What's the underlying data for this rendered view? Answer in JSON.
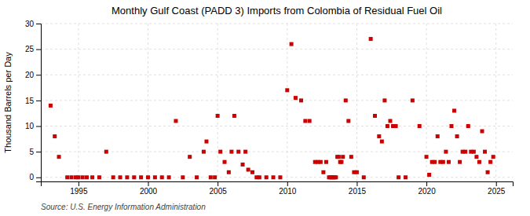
{
  "chart_data": {
    "type": "scatter",
    "title": "Monthly Gulf Coast (PADD 3) Imports from Colombia of Residual Fuel Oil",
    "ylabel": "Thousand Barrels per Day",
    "source": "Source: U.S. Energy Information Administration",
    "color": "#cc0000",
    "marker": "square",
    "grid": true,
    "xlim": [
      1992.3,
      2026.2
    ],
    "ylim": [
      -0.8,
      30
    ],
    "xticks": [
      1995,
      2000,
      2005,
      2010,
      2015,
      2020,
      2025
    ],
    "yticks": [
      0,
      5,
      10,
      15,
      20,
      25,
      30
    ],
    "x": [
      1993.0,
      1993.3,
      1993.6,
      1994.2,
      1994.5,
      1994.8,
      1995.0,
      1995.3,
      1995.6,
      1996.0,
      1996.5,
      1997.0,
      1997.5,
      1998.0,
      1998.5,
      1999.0,
      1999.5,
      2000.0,
      2000.5,
      2001.0,
      2001.5,
      2002.0,
      2002.5,
      2003.0,
      2003.5,
      2004.0,
      2004.2,
      2004.5,
      2004.8,
      2005.0,
      2005.2,
      2005.5,
      2005.8,
      2006.0,
      2006.2,
      2006.5,
      2006.8,
      2007.0,
      2007.2,
      2007.5,
      2007.8,
      2008.0,
      2008.5,
      2009.0,
      2009.5,
      2010.0,
      2010.3,
      2010.6,
      2011.0,
      2011.3,
      2011.6,
      2012.0,
      2012.2,
      2012.4,
      2012.6,
      2012.8,
      2013.0,
      2013.1,
      2013.2,
      2013.3,
      2013.4,
      2013.5,
      2013.6,
      2013.7,
      2013.8,
      2013.9,
      2014.0,
      2014.2,
      2014.4,
      2014.6,
      2014.8,
      2015.0,
      2015.5,
      2016.0,
      2016.3,
      2016.6,
      2016.8,
      2017.0,
      2017.2,
      2017.4,
      2017.6,
      2017.8,
      2018.0,
      2018.5,
      2019.0,
      2019.5,
      2020.0,
      2020.2,
      2020.4,
      2020.6,
      2020.8,
      2021.0,
      2021.2,
      2021.4,
      2021.6,
      2021.8,
      2022.0,
      2022.2,
      2022.4,
      2022.6,
      2022.8,
      2023.0,
      2023.2,
      2023.4,
      2023.6,
      2023.8,
      2024.0,
      2024.2,
      2024.4,
      2024.6,
      2024.8
    ],
    "values": [
      14.0,
      8.0,
      4.0,
      0.0,
      0.0,
      0.0,
      0.0,
      0.0,
      0.0,
      0.0,
      0.0,
      5.0,
      0.0,
      0.0,
      0.0,
      0.0,
      0.0,
      0.0,
      0.0,
      0.0,
      0.0,
      11.0,
      0.0,
      4.0,
      0.0,
      5.0,
      7.0,
      0.0,
      0.0,
      12.0,
      5.0,
      3.0,
      1.0,
      5.0,
      12.0,
      5.0,
      2.5,
      5.0,
      1.5,
      1.0,
      0.0,
      0.0,
      0.0,
      0.0,
      0.0,
      17.0,
      26.0,
      15.5,
      15.0,
      11.0,
      11.0,
      3.0,
      3.0,
      3.0,
      1.0,
      3.0,
      0.0,
      0.0,
      0.0,
      0.0,
      0.0,
      0.0,
      4.0,
      4.0,
      3.0,
      3.0,
      4.0,
      15.0,
      11.0,
      4.0,
      1.0,
      1.0,
      0.0,
      27.0,
      12.0,
      8.0,
      7.0,
      15.0,
      10.0,
      11.0,
      10.0,
      10.0,
      0.0,
      0.0,
      15.0,
      10.0,
      4.0,
      0.5,
      3.0,
      3.0,
      8.0,
      3.0,
      3.0,
      5.0,
      3.0,
      10.0,
      13.0,
      8.0,
      3.0,
      5.0,
      5.0,
      10.0,
      5.0,
      5.0,
      4.0,
      3.0,
      9.0,
      5.0,
      1.0,
      3.0,
      4.0
    ]
  }
}
